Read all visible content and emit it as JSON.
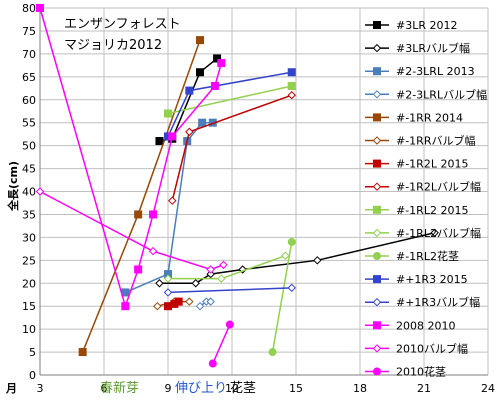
{
  "chart_data": {
    "type": "line",
    "title_lines": [
      "エンザンフォレスト",
      "マジョリカ2012"
    ],
    "ylabel": "全長(cm)",
    "xlabel_start": "月",
    "x_annotations": [
      {
        "text": "春新芽",
        "color": "#5b9b2a"
      },
      {
        "text": "伸び上り",
        "color": "#2255cc"
      },
      {
        "text": "花茎",
        "color": "#000000"
      }
    ],
    "xlim": [
      3,
      24
    ],
    "ylim": [
      0,
      80
    ],
    "xticks": [
      3,
      6,
      9,
      12,
      15,
      18,
      21,
      24
    ],
    "xtick_labels": [
      "3",
      "6",
      "9",
      "12",
      "15",
      "18",
      "21",
      "24"
    ],
    "yticks": [
      0,
      5,
      10,
      15,
      20,
      25,
      30,
      35,
      40,
      45,
      50,
      55,
      60,
      65,
      70,
      75,
      80
    ],
    "grid": true,
    "legend_position": "right",
    "series": [
      {
        "name": "#3LR 2012",
        "color": "#000000",
        "marker": "square",
        "fill": true,
        "points": [
          [
            8.6,
            51
          ],
          [
            9.2,
            51.5
          ],
          [
            10.5,
            66
          ],
          [
            11.3,
            69
          ]
        ]
      },
      {
        "name": "#3LRバルブ幅",
        "color": "#000000",
        "marker": "diamond",
        "fill": false,
        "points": [
          [
            8.6,
            20
          ],
          [
            10.3,
            20
          ],
          [
            11,
            22
          ],
          [
            12.5,
            23
          ],
          [
            16,
            25
          ],
          [
            21.5,
            31
          ]
        ]
      },
      {
        "name": "#2-3LRL 2013",
        "color": "#4a7ebb",
        "marker": "square",
        "fill": true,
        "points": [
          [
            7,
            18
          ],
          [
            9,
            22
          ],
          [
            9.9,
            51
          ],
          [
            10.6,
            55
          ],
          [
            11.1,
            55
          ]
        ]
      },
      {
        "name": "#2-3LRLバルブ幅",
        "color": "#4a7ebb",
        "marker": "diamond",
        "fill": false,
        "points": [
          [
            10.5,
            15
          ],
          [
            10.8,
            16
          ],
          [
            11,
            16
          ]
        ]
      },
      {
        "name": "#-1RR 2014",
        "color": "#984807",
        "marker": "square",
        "fill": true,
        "points": [
          [
            5,
            5
          ],
          [
            7.6,
            35
          ],
          [
            10.5,
            73
          ]
        ]
      },
      {
        "name": "#-1RRバルブ幅",
        "color": "#984807",
        "marker": "diamond",
        "fill": false,
        "points": [
          [
            8.5,
            15
          ],
          [
            9.3,
            16
          ],
          [
            10,
            16
          ]
        ]
      },
      {
        "name": "#-1R2L 2015",
        "color": "#c00000",
        "marker": "square",
        "fill": true,
        "points": [
          [
            9,
            15
          ],
          [
            9.3,
            15.5
          ],
          [
            9.5,
            16
          ]
        ]
      },
      {
        "name": "#-1R2Lバルブ幅",
        "color": "#c00000",
        "marker": "diamond",
        "fill": false,
        "points": [
          [
            9.2,
            38
          ],
          [
            10,
            53
          ],
          [
            14.8,
            61
          ]
        ]
      },
      {
        "name": "#-1RL2 2015",
        "color": "#92d050",
        "marker": "square",
        "fill": true,
        "points": [
          [
            9,
            57
          ],
          [
            14.8,
            63
          ]
        ]
      },
      {
        "name": "#-1RL2バルブ幅",
        "color": "#92d050",
        "marker": "diamond",
        "fill": false,
        "points": [
          [
            9,
            21
          ],
          [
            11.5,
            21
          ],
          [
            14.5,
            26
          ]
        ]
      },
      {
        "name": "#-1RL2花茎",
        "color": "#92d050",
        "marker": "circle",
        "fill": true,
        "points": [
          [
            13.9,
            5
          ],
          [
            14.8,
            29
          ]
        ]
      },
      {
        "name": "#+1R3 2015",
        "color": "#3344cc",
        "marker": "square",
        "fill": true,
        "points": [
          [
            9,
            52
          ],
          [
            10,
            62
          ],
          [
            14.8,
            66
          ]
        ]
      },
      {
        "name": "#+1R3バルブ幅",
        "color": "#3344cc",
        "marker": "diamond",
        "fill": false,
        "points": [
          [
            9,
            18
          ],
          [
            14.8,
            19
          ]
        ]
      },
      {
        "name": "2008 2010",
        "color": "#ff00ff",
        "marker": "square",
        "fill": true,
        "points": [
          [
            3,
            80
          ],
          [
            7,
            15
          ],
          [
            7.6,
            23
          ],
          [
            8.3,
            35
          ],
          [
            9.2,
            52
          ],
          [
            11.2,
            63
          ],
          [
            11.5,
            68
          ]
        ]
      },
      {
        "name": "2010バルブ幅",
        "color": "#ff00ff",
        "marker": "diamond",
        "fill": false,
        "points": [
          [
            3,
            40
          ],
          [
            8.3,
            27
          ],
          [
            11,
            23
          ],
          [
            11.6,
            24
          ]
        ]
      },
      {
        "name": "2010花茎",
        "color": "#ff00ff",
        "marker": "circle",
        "fill": true,
        "points": [
          [
            11.1,
            2.5
          ],
          [
            11.9,
            11
          ]
        ]
      }
    ]
  }
}
